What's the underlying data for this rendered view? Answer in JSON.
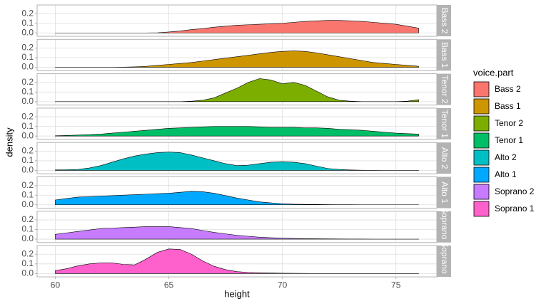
{
  "chart_data": {
    "type": "density",
    "xlabel": "height",
    "ylabel": "density",
    "legend_title": "voice.part",
    "x": [
      60,
      60.5,
      61,
      61.5,
      62,
      62.5,
      63,
      63.5,
      64,
      64.5,
      65,
      65.5,
      66,
      66.5,
      67,
      67.5,
      68,
      68.5,
      69,
      69.5,
      70,
      70.5,
      71,
      71.5,
      72,
      72.5,
      73,
      73.5,
      74,
      74.5,
      75,
      75.5,
      76
    ],
    "xlim": [
      59.2,
      76.8
    ],
    "ylim": [
      -0.035,
      0.29
    ],
    "xticks": [
      60,
      65,
      70,
      75
    ],
    "yticks": [
      {
        "value": 0,
        "label": "0.0"
      },
      0.1,
      0.2
    ],
    "grid": true,
    "series": [
      {
        "name": "Bass 2",
        "color": "#F8766D",
        "values": [
          0,
          0,
          0,
          0,
          0,
          0,
          0,
          0,
          0,
          0.002,
          0.01,
          0.02,
          0.035,
          0.045,
          0.06,
          0.07,
          0.08,
          0.085,
          0.09,
          0.095,
          0.1,
          0.11,
          0.12,
          0.125,
          0.13,
          0.13,
          0.125,
          0.12,
          0.11,
          0.1,
          0.09,
          0.07,
          0.05
        ]
      },
      {
        "name": "Bass 1",
        "color": "#CD9600",
        "values": [
          0,
          0,
          0,
          0,
          0,
          0,
          0.002,
          0.005,
          0.01,
          0.02,
          0.03,
          0.04,
          0.05,
          0.065,
          0.08,
          0.095,
          0.11,
          0.125,
          0.14,
          0.155,
          0.165,
          0.17,
          0.165,
          0.15,
          0.13,
          0.11,
          0.09,
          0.07,
          0.05,
          0.04,
          0.03,
          0.02,
          0.01
        ]
      },
      {
        "name": "Tenor 2",
        "color": "#7CAE00",
        "values": [
          0,
          0,
          0,
          0,
          0,
          0,
          0,
          0,
          0,
          0,
          0,
          0,
          0.005,
          0.015,
          0.04,
          0.09,
          0.14,
          0.2,
          0.24,
          0.225,
          0.185,
          0.2,
          0.17,
          0.11,
          0.05,
          0.015,
          0.005,
          0,
          0,
          0,
          0,
          0.005,
          0.02
        ]
      },
      {
        "name": "Tenor 1",
        "color": "#00BE67",
        "values": [
          0.003,
          0.006,
          0.01,
          0.015,
          0.02,
          0.03,
          0.04,
          0.05,
          0.06,
          0.07,
          0.08,
          0.085,
          0.09,
          0.095,
          0.1,
          0.1,
          0.1,
          0.1,
          0.095,
          0.09,
          0.09,
          0.09,
          0.085,
          0.085,
          0.08,
          0.07,
          0.065,
          0.06,
          0.05,
          0.04,
          0.03,
          0.025,
          0.02
        ]
      },
      {
        "name": "Alto 2",
        "color": "#00BFC4",
        "values": [
          0.005,
          0.007,
          0.01,
          0.025,
          0.05,
          0.085,
          0.12,
          0.15,
          0.17,
          0.185,
          0.19,
          0.185,
          0.16,
          0.13,
          0.1,
          0.07,
          0.05,
          0.055,
          0.07,
          0.085,
          0.09,
          0.085,
          0.07,
          0.045,
          0.02,
          0.01,
          0.005,
          0.002,
          0.001,
          0,
          0,
          0,
          0
        ]
      },
      {
        "name": "Alto 1",
        "color": "#00A9FF",
        "values": [
          0.05,
          0.065,
          0.08,
          0.085,
          0.09,
          0.095,
          0.1,
          0.105,
          0.11,
          0.115,
          0.12,
          0.13,
          0.14,
          0.135,
          0.12,
          0.095,
          0.07,
          0.05,
          0.03,
          0.02,
          0.01,
          0.006,
          0.004,
          0.003,
          0.002,
          0.001,
          0.001,
          0,
          0,
          0,
          0,
          0,
          0
        ]
      },
      {
        "name": "Soprano 2",
        "color": "#C77CFF",
        "values": [
          0.05,
          0.065,
          0.08,
          0.095,
          0.11,
          0.115,
          0.12,
          0.125,
          0.13,
          0.13,
          0.13,
          0.12,
          0.11,
          0.09,
          0.07,
          0.055,
          0.04,
          0.03,
          0.02,
          0.015,
          0.01,
          0.007,
          0.005,
          0.004,
          0.003,
          0.002,
          0.001,
          0.001,
          0,
          0,
          0,
          0,
          0
        ]
      },
      {
        "name": "Soprano 1",
        "color": "#FF61CC",
        "values": [
          0.03,
          0.05,
          0.08,
          0.1,
          0.11,
          0.11,
          0.095,
          0.09,
          0.15,
          0.22,
          0.255,
          0.25,
          0.2,
          0.13,
          0.075,
          0.04,
          0.02,
          0.012,
          0.008,
          0.005,
          0.003,
          0.002,
          0.001,
          0,
          0,
          0,
          0,
          0,
          0,
          0,
          0,
          0,
          0
        ]
      }
    ]
  }
}
